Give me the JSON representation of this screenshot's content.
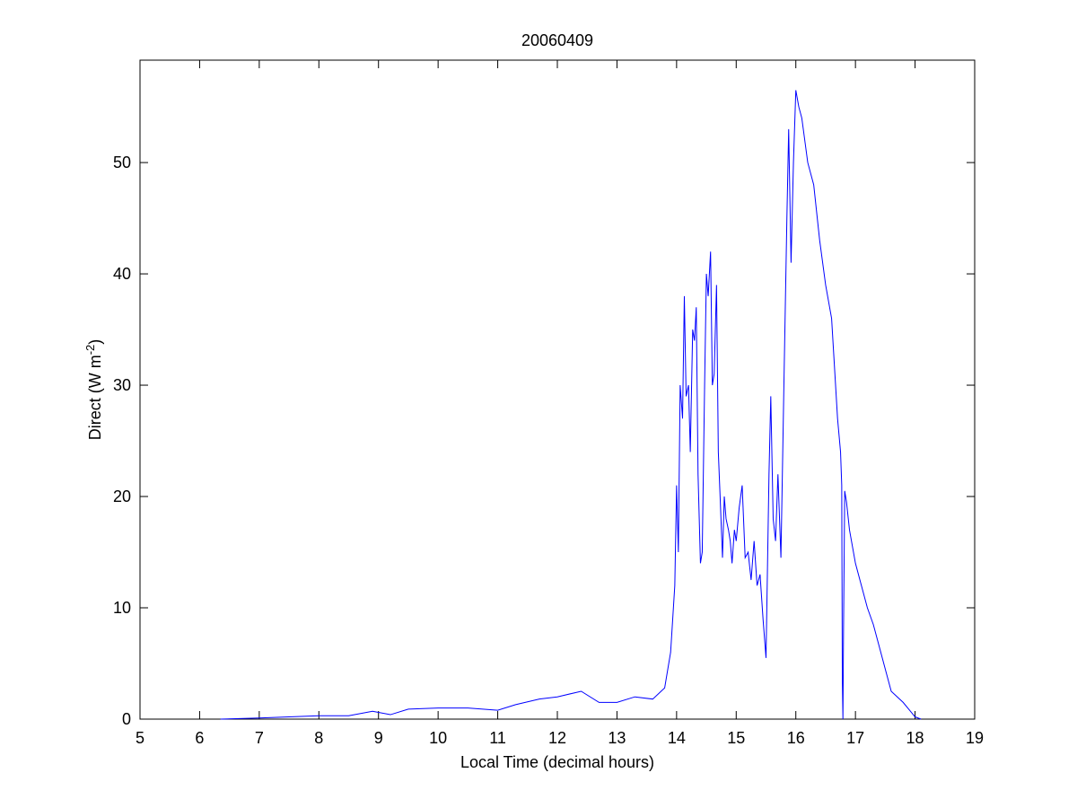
{
  "chart_data": {
    "type": "line",
    "title": "20060409",
    "xlabel": "Local Time (decimal hours)",
    "ylabel": [
      "Direct (W m",
      "-2",
      ")"
    ],
    "xlim": [
      5,
      19
    ],
    "xticks": [
      5,
      6,
      7,
      8,
      9,
      10,
      11,
      12,
      13,
      14,
      15,
      16,
      17,
      18,
      19
    ],
    "ylim": [
      0,
      59.2
    ],
    "yticks": [
      0,
      10,
      20,
      30,
      40,
      50
    ],
    "series": [
      {
        "color": "#0000ff",
        "x": [
          6.35,
          7,
          7.5,
          8,
          8.5,
          8.9,
          9.2,
          9.5,
          10,
          10.5,
          11,
          11.3,
          11.7,
          12,
          12.4,
          12.7,
          13,
          13.3,
          13.6,
          13.8,
          13.9,
          13.97,
          14.0,
          14.03,
          14.06,
          14.1,
          14.13,
          14.16,
          14.2,
          14.23,
          14.27,
          14.3,
          14.33,
          14.36,
          14.4,
          14.43,
          14.47,
          14.5,
          14.53,
          14.57,
          14.6,
          14.63,
          14.67,
          14.7,
          14.73,
          14.77,
          14.8,
          14.83,
          14.87,
          14.9,
          14.93,
          14.97,
          15.0,
          15.05,
          15.1,
          15.15,
          15.2,
          15.25,
          15.3,
          15.35,
          15.4,
          15.45,
          15.5,
          15.55,
          15.58,
          15.62,
          15.66,
          15.7,
          15.75,
          15.8,
          15.85,
          15.88,
          15.92,
          15.96,
          16.0,
          16.05,
          16.1,
          16.2,
          16.3,
          16.4,
          16.5,
          16.6,
          16.7,
          16.75,
          16.77,
          16.78,
          16.79,
          16.8,
          16.82,
          16.85,
          16.9,
          17,
          17.1,
          17.2,
          17.3,
          17.4,
          17.5,
          17.6,
          17.8,
          18.0,
          18.1
        ],
        "values": [
          0,
          0.1,
          0.2,
          0.3,
          0.3,
          0.7,
          0.4,
          0.9,
          1.0,
          1.0,
          0.8,
          1.3,
          1.8,
          2.0,
          2.5,
          1.5,
          1.5,
          2.0,
          1.8,
          2.8,
          6,
          12,
          21,
          15,
          30,
          27,
          38,
          29,
          30,
          24,
          35,
          34,
          37,
          22,
          14,
          15,
          30,
          40,
          38,
          42,
          30,
          31,
          39,
          24,
          20,
          14.5,
          20,
          18,
          17,
          16,
          14,
          17,
          16,
          19,
          21,
          14.5,
          15,
          12.5,
          16,
          12,
          13,
          9,
          5.5,
          22,
          29,
          18,
          16,
          22,
          14.5,
          30,
          45,
          53,
          41,
          50,
          56.5,
          55,
          54,
          50,
          48,
          43,
          39,
          36,
          27,
          24,
          21,
          3.5,
          0,
          8,
          20.5,
          19.5,
          17,
          14,
          12,
          10,
          8.5,
          6.5,
          4.5,
          2.5,
          1.5,
          0.2,
          0
        ]
      }
    ]
  }
}
